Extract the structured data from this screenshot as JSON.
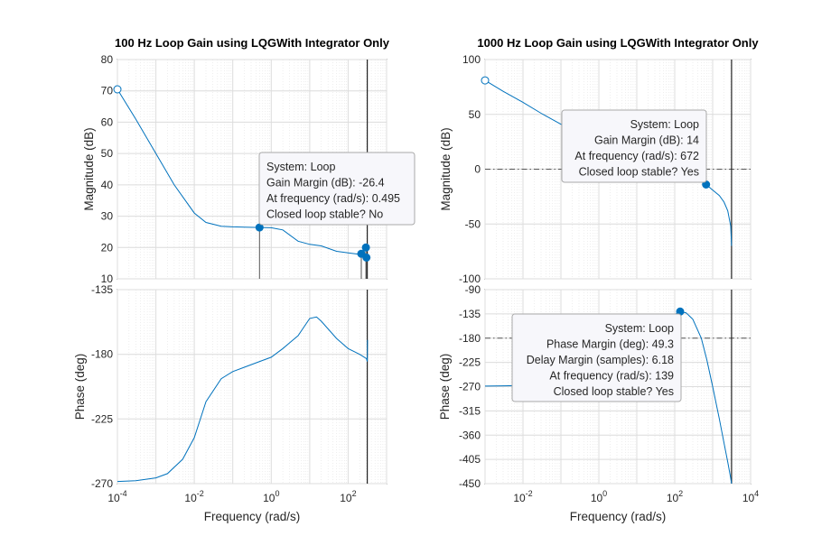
{
  "chart_data": [
    {
      "type": "line",
      "title": "100 Hz Loop Gain using LQGWith Integrator Only",
      "ylabel": "Magnitude (dB)",
      "xscale": "log",
      "xlim": [
        0.0001,
        1000
      ],
      "ylim": [
        10,
        80
      ],
      "yticks": [
        "80",
        "70",
        "60",
        "50",
        "40",
        "30",
        "20",
        "10"
      ],
      "series": [
        {
          "x": [
            0.0001,
            0.0003,
            0.001,
            0.003,
            0.01,
            0.02,
            0.05,
            0.1,
            0.2,
            0.495,
            1,
            2,
            5,
            10,
            20,
            50,
            100,
            200,
            300,
            314
          ],
          "y": [
            70.5,
            61,
            50,
            40,
            31,
            28,
            26.8,
            26.6,
            26.5,
            26.4,
            26.3,
            25.6,
            22,
            21,
            20.5,
            18.8,
            18.3,
            17.8,
            16.5,
            17
          ]
        }
      ],
      "markers": [
        {
          "x": 0.0001,
          "y": 70.5,
          "style": "open"
        },
        {
          "x": 0.495,
          "y": 26.4,
          "style": "filled"
        },
        {
          "x": 220,
          "y": 18,
          "style": "filled"
        },
        {
          "x": 290,
          "y": 20,
          "style": "filled"
        },
        {
          "x": 300,
          "y": 16.8,
          "style": "filled"
        }
      ],
      "nyquist_line_x": 314,
      "datatip": [
        "System: Loop",
        "Gain Margin (dB): -26.4",
        "At frequency (rad/s): 0.495",
        "Closed loop stable? No"
      ]
    },
    {
      "type": "line",
      "xlabel": "Frequency  (rad/s)",
      "ylabel": "Phase (deg)",
      "xscale": "log",
      "xlim": [
        0.0001,
        1000
      ],
      "ylim": [
        -270,
        -135
      ],
      "yticks": [
        "-135",
        "-180",
        "-225",
        "-270"
      ],
      "xticks": [
        {
          "base": "10",
          "exp": "-4"
        },
        {
          "base": "10",
          "exp": "-2"
        },
        {
          "base": "10",
          "exp": "0"
        },
        {
          "base": "10",
          "exp": "2"
        }
      ],
      "series": [
        {
          "x": [
            0.0001,
            0.0003,
            0.001,
            0.002,
            0.005,
            0.01,
            0.02,
            0.05,
            0.1,
            0.2,
            0.5,
            1,
            2,
            5,
            10,
            15,
            20,
            50,
            100,
            200,
            300,
            314,
            320
          ],
          "y": [
            -268.5,
            -268,
            -266,
            -263,
            -253,
            -238,
            -213,
            -197,
            -192,
            -189,
            -185,
            -182,
            -176,
            -167,
            -155,
            -154,
            -157,
            -169,
            -176,
            -180,
            -183,
            -185,
            -170
          ]
        }
      ],
      "nyquist_line_x": 314
    },
    {
      "type": "line",
      "title": "1000 Hz Loop Gain using LQGWith Integrator Only",
      "ylabel": "Magnitude (dB)",
      "xscale": "log",
      "xlim": [
        0.001,
        10000
      ],
      "ylim": [
        -100,
        100
      ],
      "yticks": [
        "100",
        "50",
        "0",
        "-50",
        "-100"
      ],
      "series": [
        {
          "x": [
            0.001,
            0.003,
            0.01,
            0.03,
            0.1,
            0.3,
            1,
            3,
            10,
            30,
            100,
            200,
            400,
            672,
            1000,
            1500,
            2000,
            2500,
            3000,
            3142
          ],
          "y": [
            81,
            71,
            61,
            51,
            41,
            33,
            26.5,
            20,
            13,
            6,
            0,
            -4,
            -9,
            -14,
            -19,
            -24,
            -30,
            -38,
            -52,
            -70
          ]
        }
      ],
      "markers": [
        {
          "x": 0.001,
          "y": 81,
          "style": "open"
        },
        {
          "x": 672,
          "y": -14,
          "style": "filled"
        }
      ],
      "reference_line_y": 0,
      "nyquist_line_x": 3142,
      "datatip": [
        "System: Loop",
        "Gain Margin (dB): 14",
        "At frequency (rad/s): 672",
        "Closed loop stable? Yes"
      ]
    },
    {
      "type": "line",
      "xlabel": "Frequency  (rad/s)",
      "ylabel": "Phase (deg)",
      "xscale": "log",
      "xlim": [
        0.001,
        10000
      ],
      "ylim": [
        -450,
        -90
      ],
      "yticks": [
        "-90",
        "-135",
        "-180",
        "-225",
        "-270",
        "-315",
        "-360",
        "-405",
        "-450"
      ],
      "xticks": [
        {
          "base": "10",
          "exp": "-2"
        },
        {
          "base": "10",
          "exp": "0"
        },
        {
          "base": "10",
          "exp": "2"
        },
        {
          "base": "10",
          "exp": "4"
        }
      ],
      "series": [
        {
          "x": [
            0.001,
            0.003,
            0.01,
            0.03,
            0.1,
            0.3,
            1,
            3,
            10,
            30,
            60,
            100,
            139,
            200,
            300,
            500,
            700,
            1000,
            1500,
            2000,
            2500,
            3000,
            3142
          ],
          "y": [
            -269,
            -268.5,
            -268,
            -267,
            -265,
            -262,
            -255,
            -242,
            -215,
            -175,
            -150,
            -136,
            -130.7,
            -133,
            -145,
            -180,
            -220,
            -270,
            -330,
            -375,
            -410,
            -440,
            -450
          ]
        }
      ],
      "markers": [
        {
          "x": 139,
          "y": -130.7,
          "style": "filled"
        }
      ],
      "reference_line_y": -180,
      "nyquist_line_x": 3142,
      "datatip": [
        "System: Loop",
        "Phase Margin (deg): 49.3",
        "Delay Margin (samples): 6.18",
        "At frequency (rad/s): 139",
        "Closed loop stable? Yes"
      ]
    }
  ]
}
